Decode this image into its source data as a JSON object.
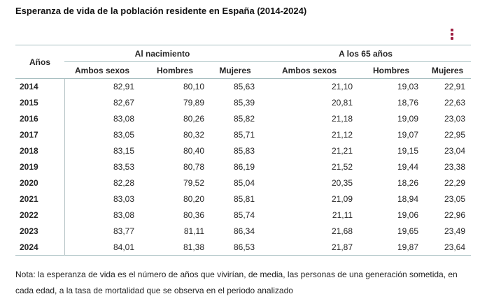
{
  "page": {
    "title": "Esperanza de vida de la población residente en España (2014-2024)",
    "note": "Nota: la esperanza de vida es el número de años que vivirían, de media, las personas de una generación sometida, en cada edad, a la tasa de mortalidad que se observa en el periodo analizado"
  },
  "menu": {
    "kebab_icon": "more-options-menu"
  },
  "colors": {
    "accent": "#9E2143",
    "table_border": "#A7BFC1",
    "text": "#262626"
  },
  "table": {
    "year_header": "Años",
    "groups": [
      {
        "label": "Al nacimiento",
        "columns": [
          "Ambos sexos",
          "Hombres",
          "Mujeres"
        ]
      },
      {
        "label": "A los 65 años",
        "columns": [
          "Ambos sexos",
          "Hombres",
          "Mujeres"
        ]
      }
    ],
    "rows": [
      {
        "year": "2014",
        "values": [
          "82,91",
          "80,10",
          "85,63",
          "21,10",
          "19,03",
          "22,91"
        ]
      },
      {
        "year": "2015",
        "values": [
          "82,67",
          "79,89",
          "85,39",
          "20,81",
          "18,76",
          "22,63"
        ]
      },
      {
        "year": "2016",
        "values": [
          "83,08",
          "80,26",
          "85,82",
          "21,18",
          "19,09",
          "23,03"
        ]
      },
      {
        "year": "2017",
        "values": [
          "83,05",
          "80,32",
          "85,71",
          "21,12",
          "19,07",
          "22,95"
        ]
      },
      {
        "year": "2018",
        "values": [
          "83,15",
          "80,40",
          "85,83",
          "21,21",
          "19,15",
          "23,04"
        ]
      },
      {
        "year": "2019",
        "values": [
          "83,53",
          "80,78",
          "86,19",
          "21,52",
          "19,44",
          "23,38"
        ]
      },
      {
        "year": "2020",
        "values": [
          "82,28",
          "79,52",
          "85,04",
          "20,35",
          "18,26",
          "22,29"
        ]
      },
      {
        "year": "2021",
        "values": [
          "83,03",
          "80,20",
          "85,81",
          "21,09",
          "18,94",
          "23,05"
        ]
      },
      {
        "year": "2022",
        "values": [
          "83,08",
          "80,36",
          "85,74",
          "21,11",
          "19,06",
          "22,96"
        ]
      },
      {
        "year": "2023",
        "values": [
          "83,77",
          "81,11",
          "86,34",
          "21,68",
          "19,65",
          "23,49"
        ]
      },
      {
        "year": "2024",
        "values": [
          "84,01",
          "81,38",
          "86,53",
          "21,87",
          "19,87",
          "23,64"
        ]
      }
    ]
  }
}
